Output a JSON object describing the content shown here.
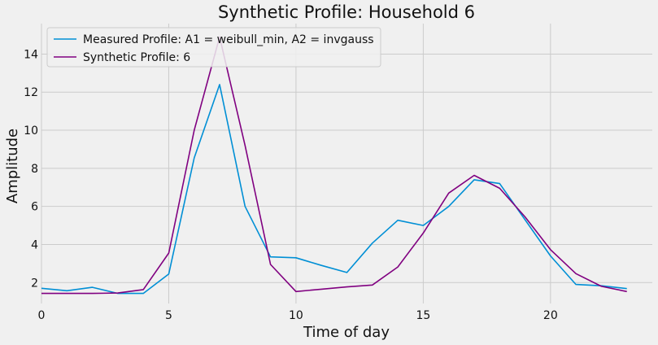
{
  "chart_data": {
    "type": "line",
    "title": "Synthetic Profile: Household 6",
    "xlabel": "Time of day",
    "ylabel": "Amplitude",
    "xlim": [
      0,
      24
    ],
    "ylim": [
      0.9,
      15.6
    ],
    "xticks": [
      0,
      5,
      10,
      15,
      20
    ],
    "yticks": [
      2,
      4,
      6,
      8,
      10,
      12,
      14
    ],
    "grid": true,
    "legend_position": "top-left",
    "x": [
      0,
      1,
      2,
      3,
      4,
      5,
      6,
      7,
      8,
      9,
      10,
      11,
      12,
      13,
      14,
      15,
      16,
      17,
      18,
      19,
      20,
      21,
      22,
      23
    ],
    "series": [
      {
        "name": "Measured Profile: A1 = weibull_min, A2 = invgauss",
        "color": "#008fd5",
        "values": [
          1.7,
          1.57,
          1.75,
          1.43,
          1.43,
          2.45,
          8.55,
          12.4,
          6.0,
          3.35,
          3.3,
          2.9,
          2.53,
          4.07,
          5.27,
          5.0,
          6.0,
          7.4,
          7.2,
          5.3,
          3.4,
          1.9,
          1.83,
          1.68
        ]
      },
      {
        "name": "Synthetic Profile: 6",
        "color": "#800080",
        "values": [
          1.43,
          1.43,
          1.43,
          1.45,
          1.63,
          3.55,
          10.0,
          14.9,
          9.2,
          2.95,
          1.53,
          1.65,
          1.77,
          1.87,
          2.82,
          4.6,
          6.7,
          7.63,
          6.95,
          5.45,
          3.73,
          2.47,
          1.8,
          1.53
        ]
      }
    ]
  }
}
